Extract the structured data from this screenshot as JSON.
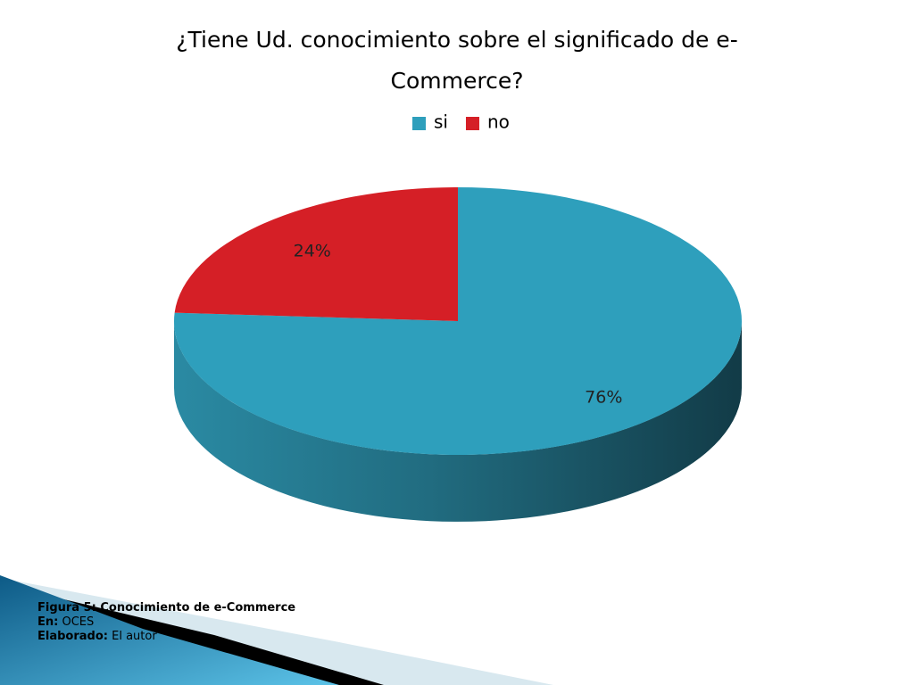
{
  "chart_data": {
    "type": "pie3d",
    "title": "¿Tiene Ud. conocimiento sobre el significado de e-Commerce?",
    "categories": [
      "si",
      "no"
    ],
    "values": [
      76,
      24
    ],
    "value_labels": [
      "76%",
      "24%"
    ],
    "colors": [
      "#2e9fbc",
      "#d51f26"
    ],
    "legend": "top"
  },
  "caption": {
    "figure": "Figura 5: Conocimiento de e-Commerce",
    "source_label": "En:",
    "source": "OCES",
    "author_label": "Elaborado:",
    "author": "El autor"
  }
}
